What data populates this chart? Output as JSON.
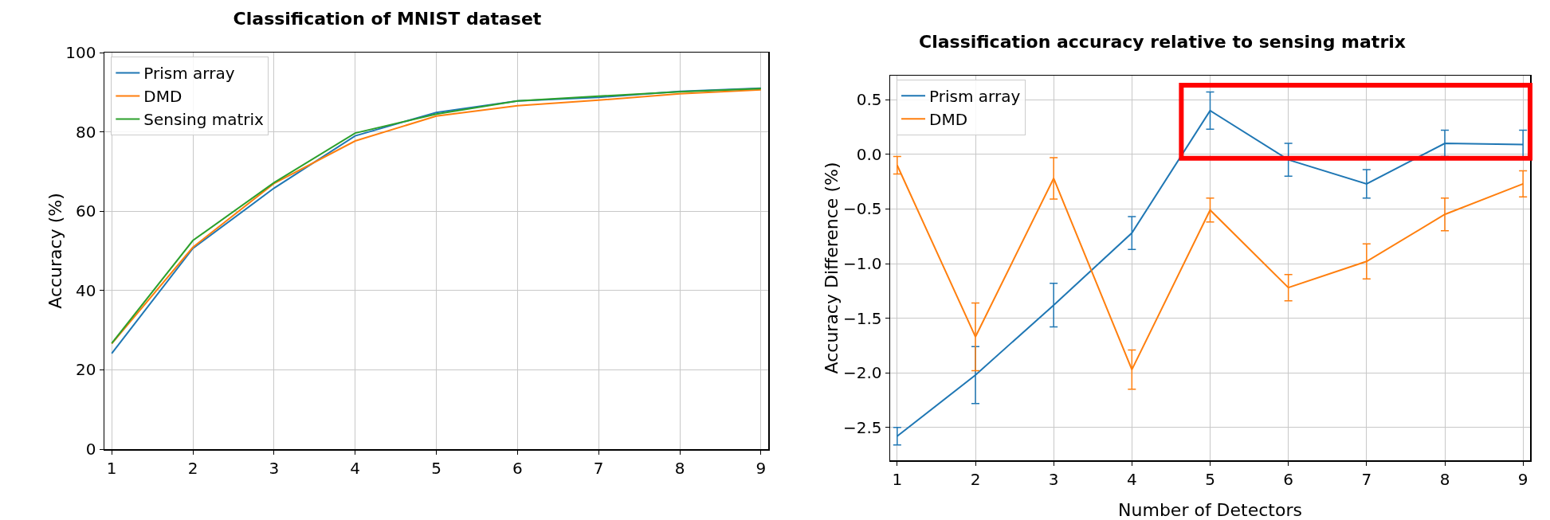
{
  "chart_data": [
    {
      "type": "line",
      "title": "Classification of MNIST dataset",
      "ylabel": "Accuracy (%)",
      "x": [
        1,
        2,
        3,
        4,
        5,
        6,
        7,
        8,
        9
      ],
      "series": [
        {
          "name": "Prism array",
          "color": "#1f77b4",
          "values": [
            24.1,
            50.6,
            65.8,
            79.0,
            84.9,
            87.8,
            88.7,
            90.2,
            91.0
          ]
        },
        {
          "name": "DMD",
          "color": "#ff7f0e",
          "values": [
            26.6,
            50.9,
            67.0,
            77.7,
            84.0,
            86.6,
            88.0,
            89.6,
            90.6
          ]
        },
        {
          "name": "Sensing matrix",
          "color": "#2ca02c",
          "values": [
            26.7,
            52.6,
            67.2,
            79.7,
            84.5,
            87.8,
            89.0,
            90.1,
            90.9
          ]
        }
      ],
      "xlim": [
        0.91,
        9.09
      ],
      "xticks": [
        1,
        2,
        3,
        4,
        5,
        6,
        7,
        8,
        9
      ],
      "ylim": [
        0,
        100
      ],
      "yticks": [
        0,
        20,
        40,
        60,
        80,
        100
      ],
      "grid": true,
      "legend": "top left"
    },
    {
      "type": "line",
      "title": "Classification accuracy relative to sensing matrix",
      "xlabel": "Number of Detectors",
      "ylabel": "Accuracy Difference (%)",
      "x": [
        1,
        2,
        3,
        4,
        5,
        6,
        7,
        8,
        9
      ],
      "series": [
        {
          "name": "Prism array",
          "color": "#1f77b4",
          "values": [
            -2.58,
            -2.02,
            -1.38,
            -0.72,
            0.4,
            -0.05,
            -0.27,
            0.1,
            0.09
          ],
          "errors": [
            0.08,
            0.26,
            0.2,
            0.15,
            0.17,
            0.15,
            0.13,
            0.12,
            0.13
          ]
        },
        {
          "name": "DMD",
          "color": "#ff7f0e",
          "values": [
            -0.1,
            -1.67,
            -0.22,
            -1.97,
            -0.51,
            -1.22,
            -0.98,
            -0.55,
            -0.27
          ],
          "errors": [
            0.08,
            0.31,
            0.19,
            0.18,
            0.11,
            0.12,
            0.16,
            0.15,
            0.12
          ]
        }
      ],
      "xlim": [
        0.91,
        9.09
      ],
      "xticks": [
        1,
        2,
        3,
        4,
        5,
        6,
        7,
        8,
        9
      ],
      "ylim": [
        -2.8,
        0.72
      ],
      "yticks": [
        {
          "value": -2.5,
          "label": "−2.5"
        },
        {
          "value": -2,
          "label": "−2.0"
        },
        {
          "value": -1.5,
          "label": "−1.5"
        },
        {
          "value": -1,
          "label": "−1.0"
        },
        {
          "value": -0.5,
          "label": "−0.5"
        },
        {
          "value": 0,
          "label": "0.0"
        },
        {
          "value": 0.5,
          "label": "0.5"
        }
      ],
      "grid": true,
      "legend": "top left"
    }
  ]
}
